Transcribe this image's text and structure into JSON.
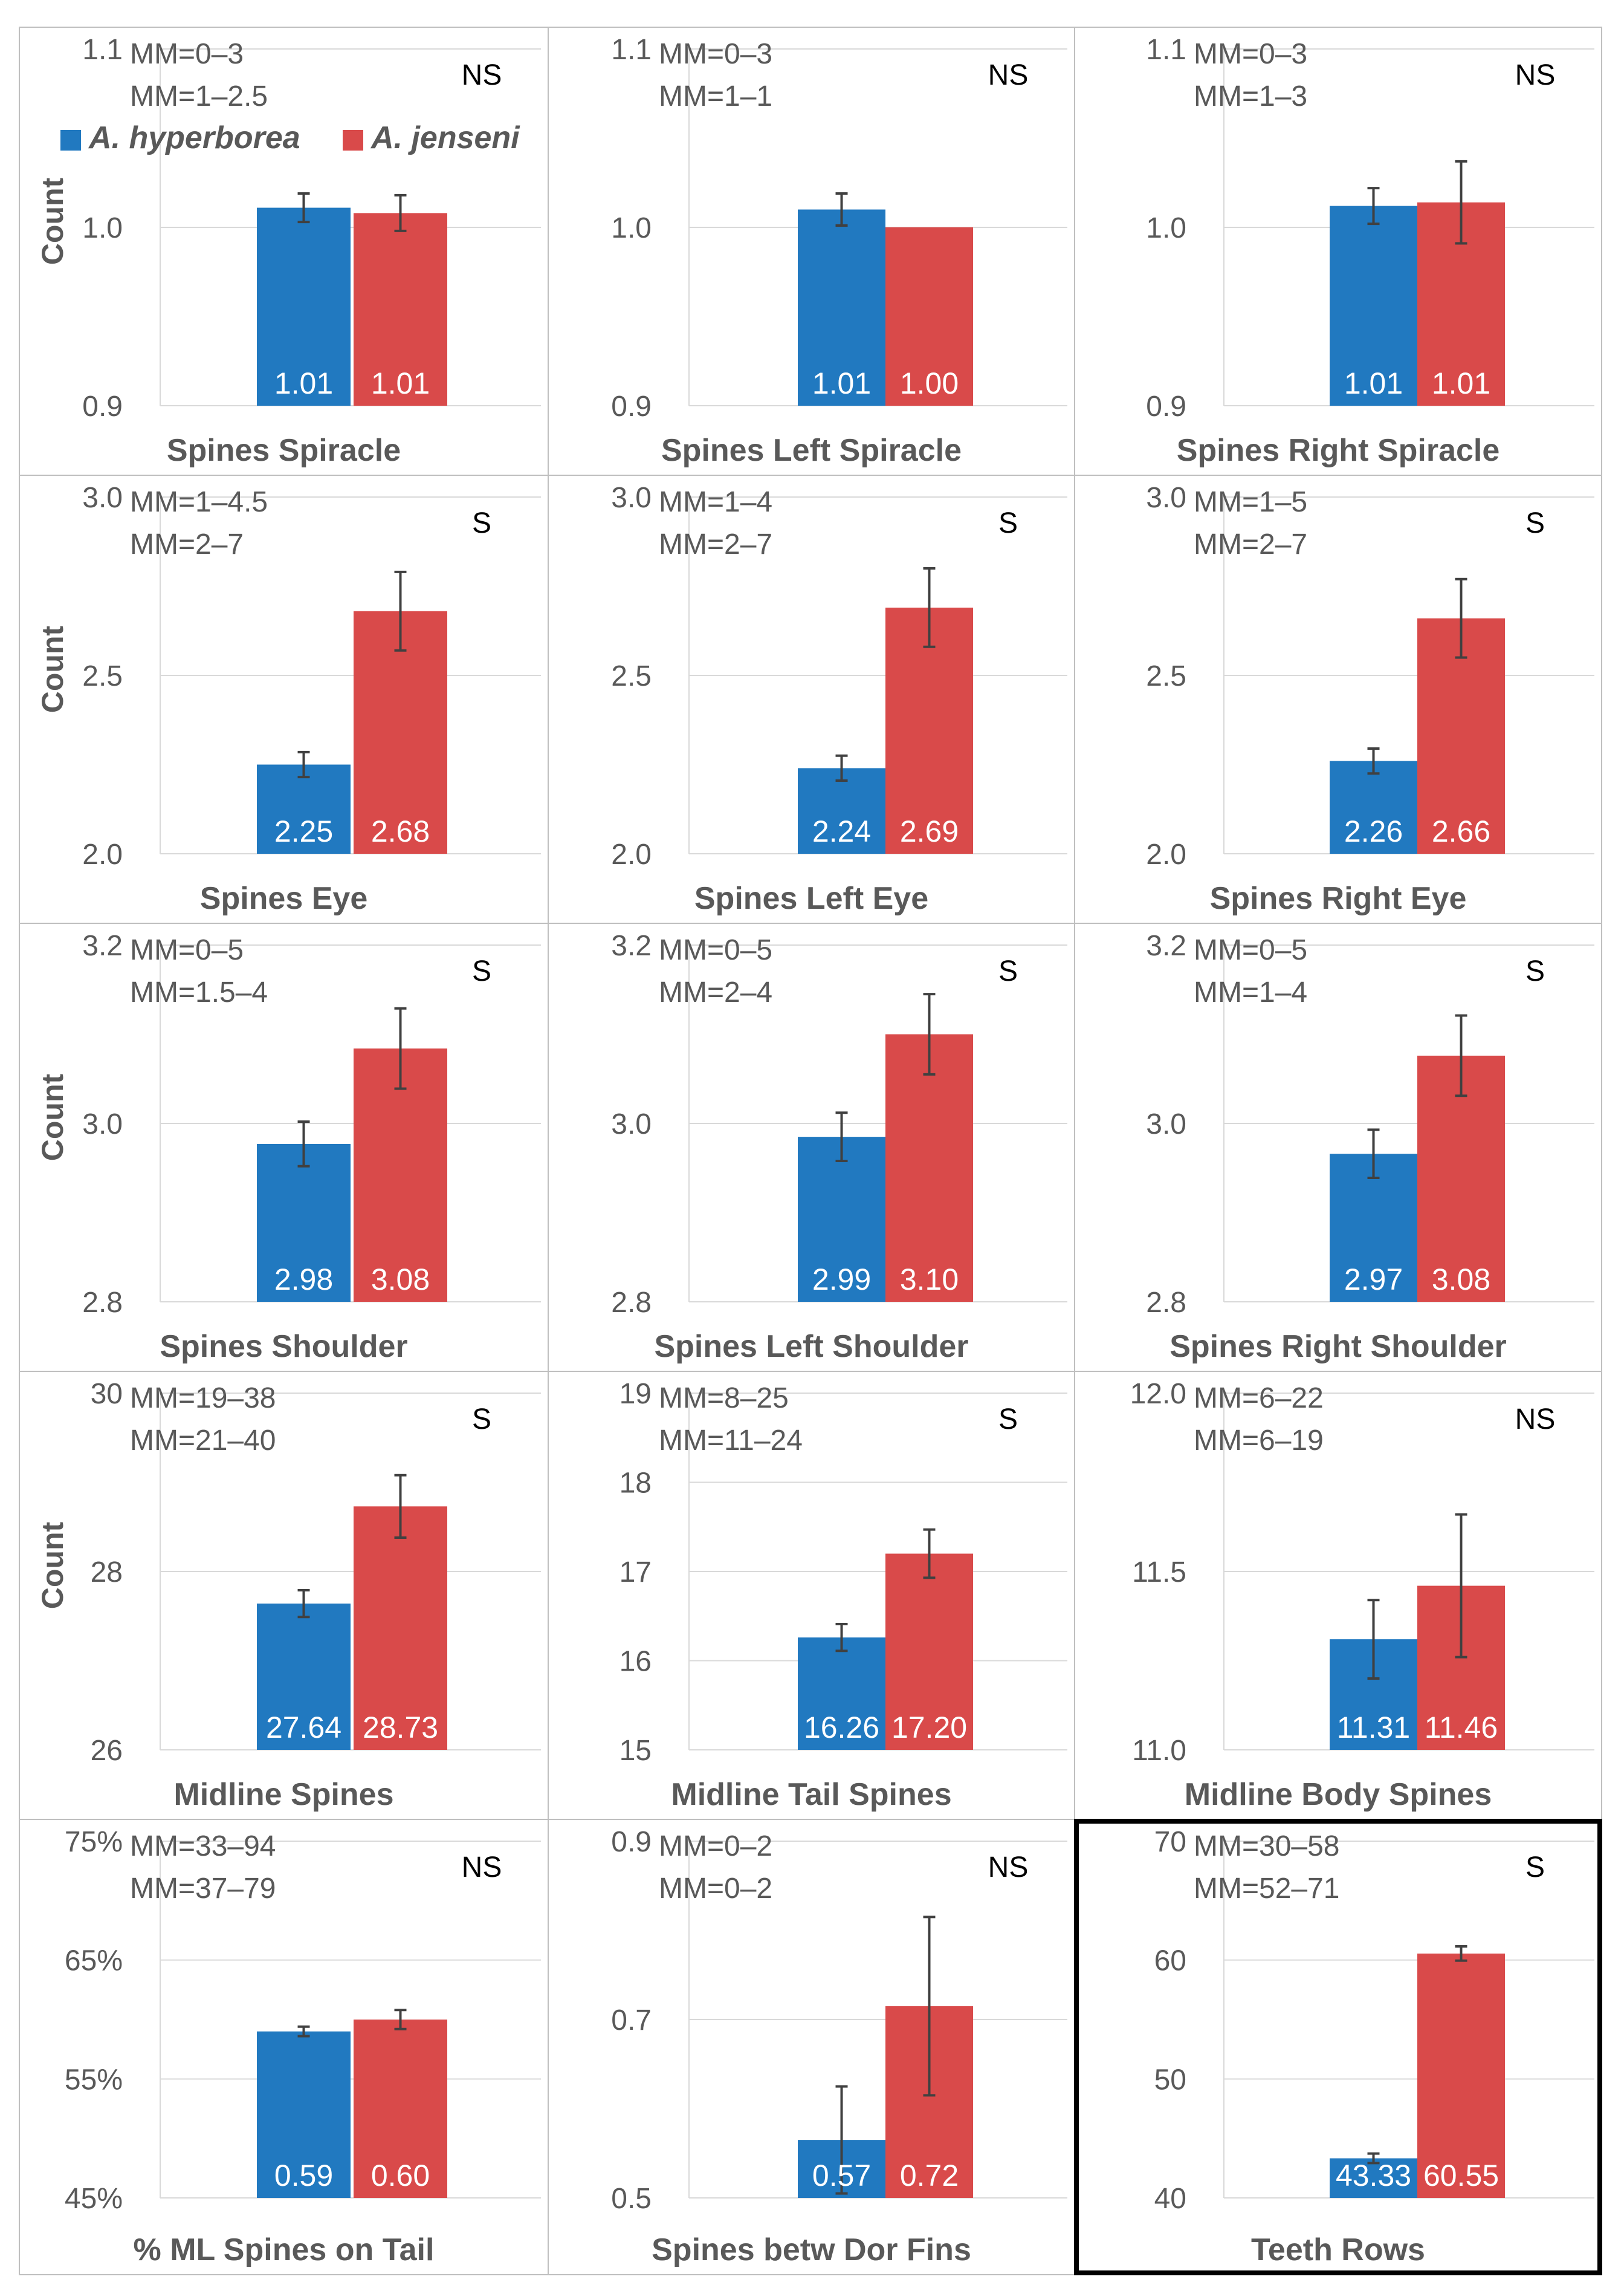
{
  "colors": {
    "hyperborea": "#2179C0",
    "jenseni": "#D94A4A",
    "axis_text": "#595959",
    "grid": "#D9D9D9",
    "panel_border": "#BFBFBF",
    "highlight_border": "#000000"
  },
  "legend": {
    "hyperborea": "A. hyperborea",
    "jenseni": "A. jenseni"
  },
  "chart_data": [
    {
      "type": "bar",
      "title": "Spines Spiracle",
      "ylabel": "Count",
      "ylim": [
        0.9,
        1.1
      ],
      "ticks": [
        "0.9",
        "1.0",
        "1.1"
      ],
      "categories": [
        "A. hyperborea",
        "A. jenseni"
      ],
      "values": [
        1.011,
        1.008
      ],
      "errors": [
        0.008,
        0.01
      ],
      "labels": [
        "1.01",
        "1.01"
      ],
      "mm": [
        "MM=0–3",
        "MM=1–2.5"
      ],
      "sig": "NS",
      "legend": true
    },
    {
      "type": "bar",
      "title": "Spines Left Spiracle",
      "ylabel": "",
      "ylim": [
        0.9,
        1.1
      ],
      "ticks": [
        "0.9",
        "1.0",
        "1.1"
      ],
      "categories": [
        "A. hyperborea",
        "A. jenseni"
      ],
      "values": [
        1.01,
        1.0
      ],
      "errors": [
        0.009,
        0.0
      ],
      "labels": [
        "1.01",
        "1.00"
      ],
      "mm": [
        "MM=0–3",
        "MM=1–1"
      ],
      "sig": "NS"
    },
    {
      "type": "bar",
      "title": "Spines Right Spiracle",
      "ylabel": "",
      "ylim": [
        0.9,
        1.1
      ],
      "ticks": [
        "0.9",
        "1.0",
        "1.1"
      ],
      "categories": [
        "A. hyperborea",
        "A. jenseni"
      ],
      "values": [
        1.012,
        1.014
      ],
      "errors": [
        0.01,
        0.023
      ],
      "labels": [
        "1.01",
        "1.01"
      ],
      "mm": [
        "MM=0–3",
        "MM=1–3"
      ],
      "sig": "NS"
    },
    {
      "type": "bar",
      "title": "Spines Eye",
      "ylabel": "Count",
      "ylim": [
        2.0,
        3.0
      ],
      "ticks": [
        "2.0",
        "2.5",
        "3.0"
      ],
      "categories": [
        "A. hyperborea",
        "A. jenseni"
      ],
      "values": [
        2.25,
        2.68
      ],
      "errors": [
        0.035,
        0.11
      ],
      "labels": [
        "2.25",
        "2.68"
      ],
      "mm": [
        "MM=1–4.5",
        "MM=2–7"
      ],
      "sig": "S"
    },
    {
      "type": "bar",
      "title": "Spines Left Eye",
      "ylabel": "",
      "ylim": [
        2.0,
        3.0
      ],
      "ticks": [
        "2.0",
        "2.5",
        "3.0"
      ],
      "categories": [
        "A. hyperborea",
        "A. jenseni"
      ],
      "values": [
        2.24,
        2.69
      ],
      "errors": [
        0.035,
        0.11
      ],
      "labels": [
        "2.24",
        "2.69"
      ],
      "mm": [
        "MM=1–4",
        "MM=2–7"
      ],
      "sig": "S"
    },
    {
      "type": "bar",
      "title": "Spines Right Eye",
      "ylabel": "",
      "ylim": [
        2.0,
        3.0
      ],
      "ticks": [
        "2.0",
        "2.5",
        "3.0"
      ],
      "categories": [
        "A. hyperborea",
        "A. jenseni"
      ],
      "values": [
        2.26,
        2.66
      ],
      "errors": [
        0.035,
        0.11
      ],
      "labels": [
        "2.26",
        "2.66"
      ],
      "mm": [
        "MM=1–5",
        "MM=2–7"
      ],
      "sig": "S"
    },
    {
      "type": "bar",
      "title": "Spines Shoulder",
      "ylabel": "Count",
      "ylim": [
        2.8,
        3.2
      ],
      "ticks": [
        "2.8",
        "3.0",
        "3.2"
      ],
      "categories": [
        "A. hyperborea",
        "A. jenseni"
      ],
      "values": [
        2.977,
        3.084
      ],
      "errors": [
        0.025,
        0.045
      ],
      "labels": [
        "2.98",
        "3.08"
      ],
      "mm": [
        "MM=0–5",
        "MM=1.5–4"
      ],
      "sig": "S"
    },
    {
      "type": "bar",
      "title": "Spines Left Shoulder",
      "ylabel": "",
      "ylim": [
        2.8,
        3.2
      ],
      "ticks": [
        "2.8",
        "3.0",
        "3.2"
      ],
      "categories": [
        "A. hyperborea",
        "A. jenseni"
      ],
      "values": [
        2.985,
        3.1
      ],
      "errors": [
        0.027,
        0.045
      ],
      "labels": [
        "2.99",
        "3.10"
      ],
      "mm": [
        "MM=0–5",
        "MM=2–4"
      ],
      "sig": "S"
    },
    {
      "type": "bar",
      "title": "Spines Right Shoulder",
      "ylabel": "",
      "ylim": [
        2.8,
        3.2
      ],
      "ticks": [
        "2.8",
        "3.0",
        "3.2"
      ],
      "categories": [
        "A. hyperborea",
        "A. jenseni"
      ],
      "values": [
        2.966,
        3.076
      ],
      "errors": [
        0.027,
        0.045
      ],
      "labels": [
        "2.97",
        "3.08"
      ],
      "mm": [
        "MM=0–5",
        "MM=1–4"
      ],
      "sig": "S"
    },
    {
      "type": "bar",
      "title": "Midline Spines",
      "ylabel": "Count",
      "ylim": [
        26,
        30
      ],
      "ticks": [
        "26",
        "28",
        "30"
      ],
      "categories": [
        "A. hyperborea",
        "A. jenseni"
      ],
      "values": [
        27.64,
        28.73
      ],
      "errors": [
        0.15,
        0.35
      ],
      "labels": [
        "27.64",
        "28.73"
      ],
      "mm": [
        "MM=19–38",
        "MM=21–40"
      ],
      "sig": "S"
    },
    {
      "type": "bar",
      "title": "Midline Tail Spines",
      "ylabel": "",
      "ylim": [
        15,
        19
      ],
      "ticks": [
        "15",
        "16",
        "17",
        "18",
        "19"
      ],
      "categories": [
        "A. hyperborea",
        "A. jenseni"
      ],
      "values": [
        16.26,
        17.2
      ],
      "errors": [
        0.15,
        0.27
      ],
      "labels": [
        "16.26",
        "17.20"
      ],
      "mm": [
        "MM=8–25",
        "MM=11–24"
      ],
      "sig": "S"
    },
    {
      "type": "bar",
      "title": "Midline Body Spines",
      "ylabel": "",
      "ylim": [
        11.0,
        12.0
      ],
      "ticks": [
        "11.0",
        "11.5",
        "12.0"
      ],
      "categories": [
        "A. hyperborea",
        "A. jenseni"
      ],
      "values": [
        11.31,
        11.46
      ],
      "errors": [
        0.11,
        0.2
      ],
      "labels": [
        "11.31",
        "11.46"
      ],
      "mm": [
        "MM=6–22",
        "MM=6–19"
      ],
      "sig": "NS"
    },
    {
      "type": "bar",
      "title": "% ML Spines on Tail",
      "ylabel": "",
      "ylim": [
        0.45,
        0.75
      ],
      "ticks": [
        "45%",
        "55%",
        "65%",
        "75%"
      ],
      "categories": [
        "A. hyperborea",
        "A. jenseni"
      ],
      "values": [
        0.59,
        0.6
      ],
      "errors": [
        0.004,
        0.008
      ],
      "labels": [
        "0.59",
        "0.60"
      ],
      "mm": [
        "MM=33–94",
        "MM=37–79"
      ],
      "sig": "NS"
    },
    {
      "type": "bar",
      "title": "Spines betw Dor Fins",
      "ylabel": "",
      "ylim": [
        0.5,
        0.9
      ],
      "ticks": [
        "0.5",
        "0.7",
        "0.9"
      ],
      "categories": [
        "A. hyperborea",
        "A. jenseni"
      ],
      "values": [
        0.565,
        0.715
      ],
      "errors": [
        0.06,
        0.1
      ],
      "labels": [
        "0.57",
        "0.72"
      ],
      "mm": [
        "MM=0–2",
        "MM=0–2"
      ],
      "sig": "NS"
    },
    {
      "type": "bar",
      "title": "Teeth Rows",
      "ylabel": "",
      "ylim": [
        40,
        70
      ],
      "ticks": [
        "40",
        "50",
        "60",
        "70"
      ],
      "categories": [
        "A. hyperborea",
        "A. jenseni"
      ],
      "values": [
        43.33,
        60.55
      ],
      "errors": [
        0.4,
        0.6
      ],
      "labels": [
        "43.33",
        "60.55"
      ],
      "mm": [
        "MM=30–58",
        "MM=52–71"
      ],
      "sig": "S",
      "highlight": true
    }
  ]
}
